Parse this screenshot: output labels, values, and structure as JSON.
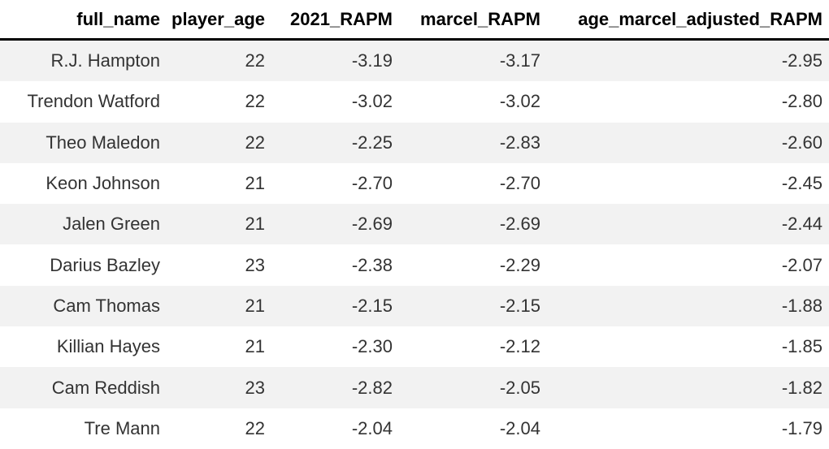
{
  "table": {
    "columns": [
      "full_name",
      "player_age",
      "2021_RAPM",
      "marcel_RAPM",
      "age_marcel_adjusted_RAPM"
    ],
    "rows": [
      [
        "R.J. Hampton",
        "22",
        "-3.19",
        "-3.17",
        "-2.95"
      ],
      [
        "Trendon Watford",
        "22",
        "-3.02",
        "-3.02",
        "-2.80"
      ],
      [
        "Theo Maledon",
        "22",
        "-2.25",
        "-2.83",
        "-2.60"
      ],
      [
        "Keon Johnson",
        "21",
        "-2.70",
        "-2.70",
        "-2.45"
      ],
      [
        "Jalen Green",
        "21",
        "-2.69",
        "-2.69",
        "-2.44"
      ],
      [
        "Darius Bazley",
        "23",
        "-2.38",
        "-2.29",
        "-2.07"
      ],
      [
        "Cam Thomas",
        "21",
        "-2.15",
        "-2.15",
        "-1.88"
      ],
      [
        "Killian Hayes",
        "21",
        "-2.30",
        "-2.12",
        "-1.85"
      ],
      [
        "Cam Reddish",
        "23",
        "-2.82",
        "-2.05",
        "-1.82"
      ],
      [
        "Tre Mann",
        "22",
        "-2.04",
        "-2.04",
        "-1.79"
      ]
    ]
  },
  "colors": {
    "stripe": "#f2f2f2",
    "row_white": "#ffffff",
    "header_rule": "#000000",
    "header_text": "#000000",
    "body_text": "#333333"
  },
  "chart_data": {
    "type": "table",
    "title": "",
    "columns": [
      "full_name",
      "player_age",
      "2021_RAPM",
      "marcel_RAPM",
      "age_marcel_adjusted_RAPM"
    ],
    "rows": [
      [
        "R.J. Hampton",
        22,
        -3.19,
        -3.17,
        -2.95
      ],
      [
        "Trendon Watford",
        22,
        -3.02,
        -3.02,
        -2.8
      ],
      [
        "Theo Maledon",
        22,
        -2.25,
        -2.83,
        -2.6
      ],
      [
        "Keon Johnson",
        21,
        -2.7,
        -2.7,
        -2.45
      ],
      [
        "Jalen Green",
        21,
        -2.69,
        -2.69,
        -2.44
      ],
      [
        "Darius Bazley",
        23,
        -2.38,
        -2.29,
        -2.07
      ],
      [
        "Cam Thomas",
        21,
        -2.15,
        -2.15,
        -1.88
      ],
      [
        "Killian Hayes",
        21,
        -2.3,
        -2.12,
        -1.85
      ],
      [
        "Cam Reddish",
        23,
        -2.82,
        -2.05,
        -1.82
      ],
      [
        "Tre Mann",
        22,
        -2.04,
        -2.04,
        -1.79
      ]
    ],
    "layout": {
      "striped": true,
      "stripe_start": "first_row",
      "header_rule": "thick-black",
      "cell_align": "right"
    }
  }
}
